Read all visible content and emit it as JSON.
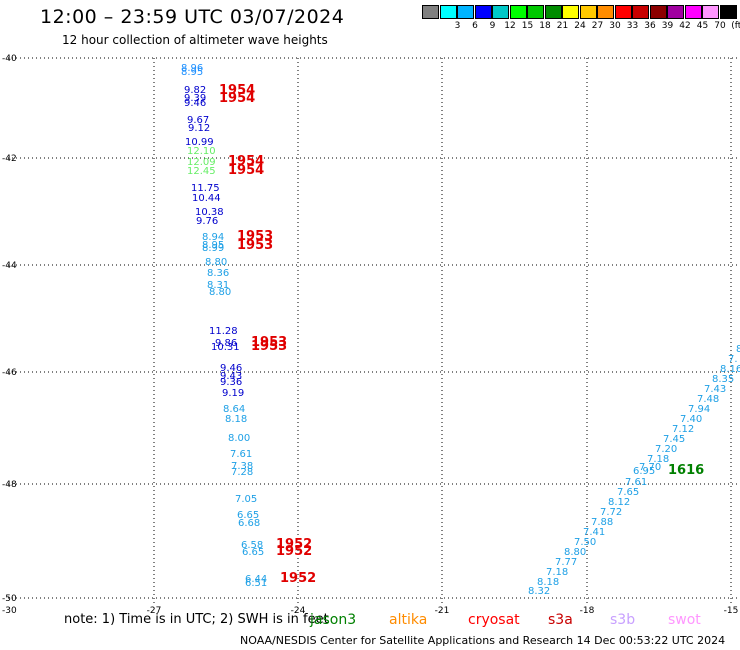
{
  "header": {
    "title": "12:00 – 23:59 UTC 03/07/2024",
    "subtitle": "12 hour collection of altimeter wave heights"
  },
  "legend": {
    "unit": "(ft)",
    "items": [
      {
        "label": "",
        "color": "#808080"
      },
      {
        "label": "3",
        "color": "#00ffff"
      },
      {
        "label": "6",
        "color": "#00b4ff"
      },
      {
        "label": "9",
        "color": "#0000ff"
      },
      {
        "label": "12",
        "color": "#00c8c8"
      },
      {
        "label": "15",
        "color": "#00ff00"
      },
      {
        "label": "18",
        "color": "#00c800"
      },
      {
        "label": "21",
        "color": "#008c00"
      },
      {
        "label": "24",
        "color": "#ffff00"
      },
      {
        "label": "27",
        "color": "#ffc800"
      },
      {
        "label": "30",
        "color": "#ff8c00"
      },
      {
        "label": "33",
        "color": "#ff0000"
      },
      {
        "label": "36",
        "color": "#c80000"
      },
      {
        "label": "39",
        "color": "#8c0000"
      },
      {
        "label": "42",
        "color": "#a000a0"
      },
      {
        "label": "45",
        "color": "#ff00ff"
      },
      {
        "label": "70",
        "color": "#ff96ff"
      },
      {
        "label": "",
        "color": "#000000"
      }
    ]
  },
  "axes": {
    "lon_labels": [
      "-27",
      "-24",
      "-21",
      "-18",
      "-15"
    ],
    "lat_labels": [
      "-40",
      "-42",
      "-44",
      "-46",
      "-48",
      "-50"
    ],
    "corner_label": "-30"
  },
  "observations": [
    {
      "text": "8.96",
      "color": "#1e90ff"
    },
    {
      "text": "8.95",
      "color": "#1e90ff"
    },
    {
      "text": "9.82",
      "color": "#0000cd"
    },
    {
      "text": "9.39",
      "color": "#0000cd"
    },
    {
      "text": "9.46",
      "color": "#0000cd"
    },
    {
      "text": "1954",
      "color": "#e00000"
    },
    {
      "text": "1954",
      "color": "#e00000"
    },
    {
      "text": "9.67",
      "color": "#0000cd"
    },
    {
      "text": "9.12",
      "color": "#0000cd"
    },
    {
      "text": "10.99",
      "color": "#0000cd"
    },
    {
      "text": "12.10",
      "color": "#66ee66"
    },
    {
      "text": "12.09",
      "color": "#66ee66"
    },
    {
      "text": "12.45",
      "color": "#66ee66"
    },
    {
      "text": "1954",
      "color": "#e00000"
    },
    {
      "text": "1954",
      "color": "#e00000"
    },
    {
      "text": "11.75",
      "color": "#0000cd"
    },
    {
      "text": "10.44",
      "color": "#0000cd"
    },
    {
      "text": "10.38",
      "color": "#0000cd"
    },
    {
      "text": "9.76",
      "color": "#0000cd"
    },
    {
      "text": "8.94",
      "color": "#1ea0e6"
    },
    {
      "text": "8.95",
      "color": "#1ea0e6"
    },
    {
      "text": "8.99",
      "color": "#1ea0e6"
    },
    {
      "text": "1953",
      "color": "#e00000"
    },
    {
      "text": "1953",
      "color": "#e00000"
    },
    {
      "text": "8.80",
      "color": "#1ea0e6"
    },
    {
      "text": "8.36",
      "color": "#1ea0e6"
    },
    {
      "text": "8.31",
      "color": "#1ea0e6"
    },
    {
      "text": "8.80",
      "color": "#1ea0e6"
    },
    {
      "text": "11.28",
      "color": "#0000cd"
    },
    {
      "text": "9.86",
      "color": "#0000cd"
    },
    {
      "text": "10.31",
      "color": "#0000cd"
    },
    {
      "text": "1953",
      "color": "#e00000"
    },
    {
      "text": "1953",
      "color": "#e00000"
    },
    {
      "text": "9.46",
      "color": "#0000cd"
    },
    {
      "text": "9.43",
      "color": "#0000cd"
    },
    {
      "text": "9.36",
      "color": "#0000cd"
    },
    {
      "text": "9.19",
      "color": "#0000cd"
    },
    {
      "text": "8.64",
      "color": "#1ea0e6"
    },
    {
      "text": "8.18",
      "color": "#1ea0e6"
    },
    {
      "text": "8.00",
      "color": "#1ea0e6"
    },
    {
      "text": "7.61",
      "color": "#1ea0e6"
    },
    {
      "text": "7.38",
      "color": "#1ea0e6"
    },
    {
      "text": "7.28",
      "color": "#1ea0e6"
    },
    {
      "text": "7.05",
      "color": "#1ea0e6"
    },
    {
      "text": "6.65",
      "color": "#1ea0e6"
    },
    {
      "text": "6.68",
      "color": "#1ea0e6"
    },
    {
      "text": "6.58",
      "color": "#1ea0e6"
    },
    {
      "text": "6.65",
      "color": "#1ea0e6"
    },
    {
      "text": "1952",
      "color": "#e00000"
    },
    {
      "text": "1952",
      "color": "#e00000"
    },
    {
      "text": "6.44",
      "color": "#1ea0e6"
    },
    {
      "text": "6.51",
      "color": "#1ea0e6"
    },
    {
      "text": "1952",
      "color": "#e00000"
    },
    {
      "text": "8",
      "color": "#1ea0e6"
    },
    {
      "text": "7.",
      "color": "#1ea0e6"
    },
    {
      "text": "8.16",
      "color": "#1ea0e6"
    },
    {
      "text": "8.35",
      "color": "#1ea0e6"
    },
    {
      "text": "7.43",
      "color": "#1ea0e6"
    },
    {
      "text": "7.48",
      "color": "#1ea0e6"
    },
    {
      "text": "7.94",
      "color": "#1ea0e6"
    },
    {
      "text": "7.40",
      "color": "#1ea0e6"
    },
    {
      "text": "7.12",
      "color": "#1ea0e6"
    },
    {
      "text": "7.45",
      "color": "#1ea0e6"
    },
    {
      "text": "7.20",
      "color": "#1ea0e6"
    },
    {
      "text": "7.18",
      "color": "#1ea0e6"
    },
    {
      "text": "7.70",
      "color": "#1ea0e6"
    },
    {
      "text": "6.95",
      "color": "#1ea0e6"
    },
    {
      "text": "1616",
      "color": "#008000"
    },
    {
      "text": "7.61",
      "color": "#1ea0e6"
    },
    {
      "text": "7.65",
      "color": "#1ea0e6"
    },
    {
      "text": "8.12",
      "color": "#1ea0e6"
    },
    {
      "text": "7.72",
      "color": "#1ea0e6"
    },
    {
      "text": "7.88",
      "color": "#1ea0e6"
    },
    {
      "text": "7.41",
      "color": "#1ea0e6"
    },
    {
      "text": "7.50",
      "color": "#1ea0e6"
    },
    {
      "text": "8.80",
      "color": "#1ea0e6"
    },
    {
      "text": "7.77",
      "color": "#1ea0e6"
    },
    {
      "text": "7.18",
      "color": "#1ea0e6"
    },
    {
      "text": "8.18",
      "color": "#1ea0e6"
    },
    {
      "text": "8.32",
      "color": "#1ea0e6"
    }
  ],
  "footer": {
    "note": "note:  1) Time is in UTC; 2) SWH is in feet",
    "satellites": [
      {
        "name": "jason3",
        "color": "#008000"
      },
      {
        "name": "altika",
        "color": "#ff8c00"
      },
      {
        "name": "cryosat",
        "color": "#ff0000"
      },
      {
        "name": "s3a",
        "color": "#c80000"
      },
      {
        "name": "s3b",
        "color": "#c8a0ff"
      },
      {
        "name": "swot",
        "color": "#ff96ff"
      }
    ],
    "credit": "NOAA/NESDIS Center for Satellite Applications and Research    14 Dec 00:53:22 UTC 2024"
  }
}
